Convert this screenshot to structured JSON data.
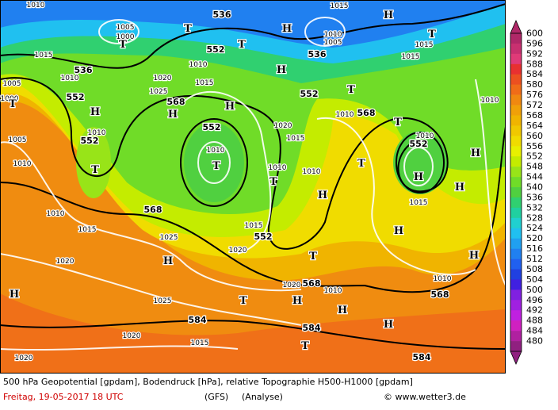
{
  "map": {
    "geopotential_labels": [
      "536",
      "552",
      "536",
      "552",
      "568",
      "552",
      "552",
      "536",
      "552",
      "568",
      "552",
      "568",
      "552",
      "568",
      "568",
      "584",
      "584",
      "584"
    ],
    "pressure_labels": [
      "1010",
      "1005",
      "1000",
      "1015",
      "1010",
      "1005",
      "1000",
      "1020",
      "1025",
      "1015",
      "1010",
      "1010",
      "1005",
      "1010",
      "1010",
      "1020",
      "1010",
      "1010",
      "1015",
      "1010",
      "1015",
      "1010",
      "1005",
      "1015",
      "1015",
      "1010",
      "1015",
      "1010",
      "1010",
      "1010",
      "1015",
      "1025",
      "1020",
      "1020",
      "1015",
      "1025",
      "1020",
      "1010",
      "1020",
      "1015",
      "1020"
    ],
    "pressure_centers": [
      "H",
      "H",
      "T",
      "T",
      "T",
      "H",
      "H",
      "H",
      "H",
      "T",
      "T",
      "T",
      "T",
      "H",
      "H",
      "H",
      "T",
      "T",
      "T",
      "H",
      "H",
      "H",
      "H",
      "T",
      "T",
      "H",
      "H",
      "H",
      "T",
      "T",
      "H"
    ]
  },
  "legend": {
    "items": [
      {
        "label": 600,
        "color": "#b02868"
      },
      {
        "label": 596,
        "color": "#c83070"
      },
      {
        "label": 592,
        "color": "#e03a78"
      },
      {
        "label": 588,
        "color": "#e83030"
      },
      {
        "label": 584,
        "color": "#ec5020"
      },
      {
        "label": 580,
        "color": "#f06c18"
      },
      {
        "label": 576,
        "color": "#f08810"
      },
      {
        "label": 572,
        "color": "#f0a008"
      },
      {
        "label": 568,
        "color": "#f0b400"
      },
      {
        "label": 564,
        "color": "#f0c800"
      },
      {
        "label": 560,
        "color": "#f0dc00"
      },
      {
        "label": 556,
        "color": "#e8f000"
      },
      {
        "label": 552,
        "color": "#c4ec00"
      },
      {
        "label": 548,
        "color": "#98e418"
      },
      {
        "label": 544,
        "color": "#70dc28"
      },
      {
        "label": 540,
        "color": "#50d040"
      },
      {
        "label": 536,
        "color": "#30d070"
      },
      {
        "label": 532,
        "color": "#20d0a0"
      },
      {
        "label": 528,
        "color": "#20d0d0"
      },
      {
        "label": 524,
        "color": "#20c0f0"
      },
      {
        "label": 520,
        "color": "#20a0f0"
      },
      {
        "label": 516,
        "color": "#2080f0"
      },
      {
        "label": 512,
        "color": "#2060f0"
      },
      {
        "label": 508,
        "color": "#2040e0"
      },
      {
        "label": 504,
        "color": "#4020e0"
      },
      {
        "label": 500,
        "color": "#8020e0"
      },
      {
        "label": 496,
        "color": "#a020e0"
      },
      {
        "label": 492,
        "color": "#c020e0"
      },
      {
        "label": 488,
        "color": "#d020c0"
      },
      {
        "label": 484,
        "color": "#b020a0"
      },
      {
        "label": 480,
        "color": "#902080"
      }
    ]
  },
  "caption": {
    "line1": "500 hPa Geopotential [gpdam], Bodendruck [hPa], relative Topographie H500-H1000 [gpdam]",
    "date": "Freitag, 19-05-2017  18 UTC",
    "model": "(GFS)",
    "run": "(Analyse)",
    "credit": "© www.wetter3.de"
  }
}
